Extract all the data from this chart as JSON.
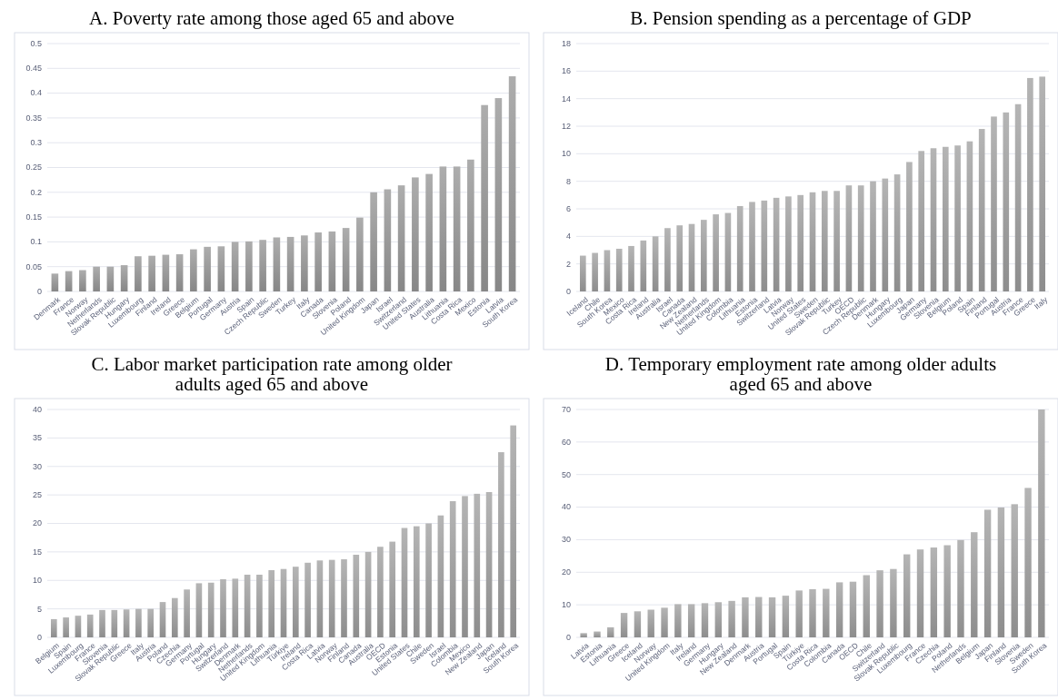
{
  "chart_data": [
    {
      "type": "bar",
      "title": "A. Poverty rate among those aged 65 and above",
      "categories": [
        "Denmark",
        "France",
        "Norway",
        "Netherlands",
        "Slovak Republic",
        "Hungary",
        "Luxembourg",
        "Finland",
        "Ireland",
        "Greece",
        "Belgium",
        "Portugal",
        "Germany",
        "Austria",
        "Spain",
        "Czech Republic",
        "Sweden",
        "Turkey",
        "Italy",
        "Canada",
        "Slovenia",
        "Poland",
        "United Kingdom",
        "Japan",
        "Israel",
        "Switzerland",
        "United States",
        "Australia",
        "Lithuania",
        "Costa Rica",
        "Mexico",
        "Estonia",
        "Latvia",
        "South Korea"
      ],
      "values": [
        0.036,
        0.041,
        0.043,
        0.05,
        0.05,
        0.053,
        0.071,
        0.072,
        0.074,
        0.075,
        0.085,
        0.09,
        0.091,
        0.1,
        0.101,
        0.104,
        0.109,
        0.11,
        0.113,
        0.119,
        0.121,
        0.128,
        0.149,
        0.2,
        0.206,
        0.214,
        0.23,
        0.237,
        0.252,
        0.252,
        0.266,
        0.376,
        0.39,
        0.434
      ],
      "color": "#999999",
      "ylim": [
        0,
        0.5
      ],
      "yticks": [
        0,
        0.05,
        0.1,
        0.15,
        0.2,
        0.25,
        0.3,
        0.35,
        0.4,
        0.45,
        0.5
      ],
      "grid": "y"
    },
    {
      "type": "bar",
      "title": "B. Pension spending as a percentage of GDP",
      "categories": [
        "Iceland",
        "Chile",
        "South Korea",
        "Mexico",
        "Costa Rica",
        "Ireland",
        "Australia",
        "Israel",
        "Canada",
        "New Zealand",
        "Netherlands",
        "United Kingdom",
        "Colombia",
        "Lithuania",
        "Estonia",
        "Switzerland",
        "Latvia",
        "Norway",
        "United States",
        "Sweden",
        "Slovak Republic",
        "Turkey",
        "OECD",
        "Czech Republic",
        "Denmark",
        "Hungary",
        "Luxembourg",
        "Japan",
        "Germany",
        "Slovenia",
        "Belgium",
        "Poland",
        "Spain",
        "Finland",
        "Portugal",
        "Austria",
        "France",
        "Greece",
        "Italy"
      ],
      "values": [
        2.6,
        2.8,
        3.0,
        3.1,
        3.3,
        3.7,
        4.0,
        4.6,
        4.8,
        4.9,
        5.2,
        5.6,
        5.7,
        6.2,
        6.5,
        6.6,
        6.8,
        6.9,
        7.0,
        7.2,
        7.3,
        7.3,
        7.7,
        7.7,
        8.0,
        8.2,
        8.5,
        9.4,
        10.2,
        10.4,
        10.5,
        10.6,
        10.9,
        11.8,
        12.7,
        13.0,
        13.6,
        15.5,
        15.6
      ],
      "color": "#a0a0a0",
      "ylim": [
        0,
        18
      ],
      "yticks": [
        0,
        2,
        4,
        6,
        8,
        10,
        12,
        14,
        16,
        18
      ],
      "grid": "y"
    },
    {
      "type": "bar",
      "title": "C. Labor market participation rate among older adults aged 65 and above",
      "categories": [
        "Belgium",
        "Spain",
        "Luxembourg",
        "France",
        "Slovenia",
        "Slovak Republic",
        "Greece",
        "Italy",
        "Austria",
        "Poland",
        "Czechia",
        "Germany",
        "Portugal",
        "Hungary",
        "Switzerland",
        "Denmark",
        "Netherlands",
        "United Kingdom",
        "Lithuania",
        "Türkiye",
        "Ireland",
        "Costa Rica",
        "Latvia",
        "Norway",
        "Finland",
        "Canada",
        "Australia",
        "OECD",
        "Estonia",
        "United States",
        "Chile",
        "Sweden",
        "Israel",
        "Colombia",
        "Mexico",
        "New Zealand",
        "Japan",
        "Iceland",
        "South Korea"
      ],
      "values": [
        3.2,
        3.5,
        3.8,
        4.0,
        4.8,
        4.8,
        4.9,
        5.0,
        5.0,
        6.2,
        6.9,
        8.4,
        9.5,
        9.6,
        10.2,
        10.3,
        11.0,
        11.0,
        11.8,
        12.0,
        12.4,
        13.1,
        13.5,
        13.6,
        13.7,
        14.5,
        15.0,
        15.9,
        16.8,
        19.2,
        19.5,
        20.0,
        21.4,
        23.9,
        24.8,
        25.2,
        25.5,
        32.5,
        37.2
      ],
      "color": "#a0a0a0",
      "ylim": [
        0,
        40
      ],
      "yticks": [
        0,
        5,
        10,
        15,
        20,
        25,
        30,
        35,
        40
      ],
      "grid": "y"
    },
    {
      "type": "bar",
      "title": "D. Temporary employment rate among older adults aged 65 and above",
      "categories": [
        "Latvia",
        "Estonia",
        "Lithuania",
        "Greece",
        "Iceland",
        "Norway",
        "United Kingdom",
        "Italy",
        "Ireland",
        "Germany",
        "Hungary",
        "New Zealand",
        "Denmark",
        "Austria",
        "Portugal",
        "Spain",
        "Türkiye",
        "Costa Rica",
        "Colombia",
        "Canada",
        "OECD",
        "Chile",
        "Switzerland",
        "Slovak Republic",
        "Luxembourg",
        "France",
        "Czechia",
        "Poland",
        "Netherlands",
        "Belgium",
        "Japan",
        "Finland",
        "Slovenia",
        "Sweden",
        "South Korea"
      ],
      "values": [
        1.3,
        1.8,
        3.1,
        7.5,
        8.0,
        8.5,
        9.1,
        10.2,
        10.2,
        10.5,
        10.8,
        11.2,
        12.3,
        12.4,
        12.3,
        12.8,
        14.4,
        14.8,
        14.9,
        16.9,
        17.1,
        19.1,
        20.6,
        21.0,
        25.5,
        27.0,
        27.6,
        28.3,
        29.9,
        32.3,
        39.2,
        39.9,
        40.9,
        45.9,
        70
      ],
      "color": "#a0a0a0",
      "ylim": [
        0,
        70
      ],
      "yticks": [
        0,
        10,
        20,
        30,
        40,
        50,
        60,
        70
      ],
      "grid": "y"
    }
  ]
}
